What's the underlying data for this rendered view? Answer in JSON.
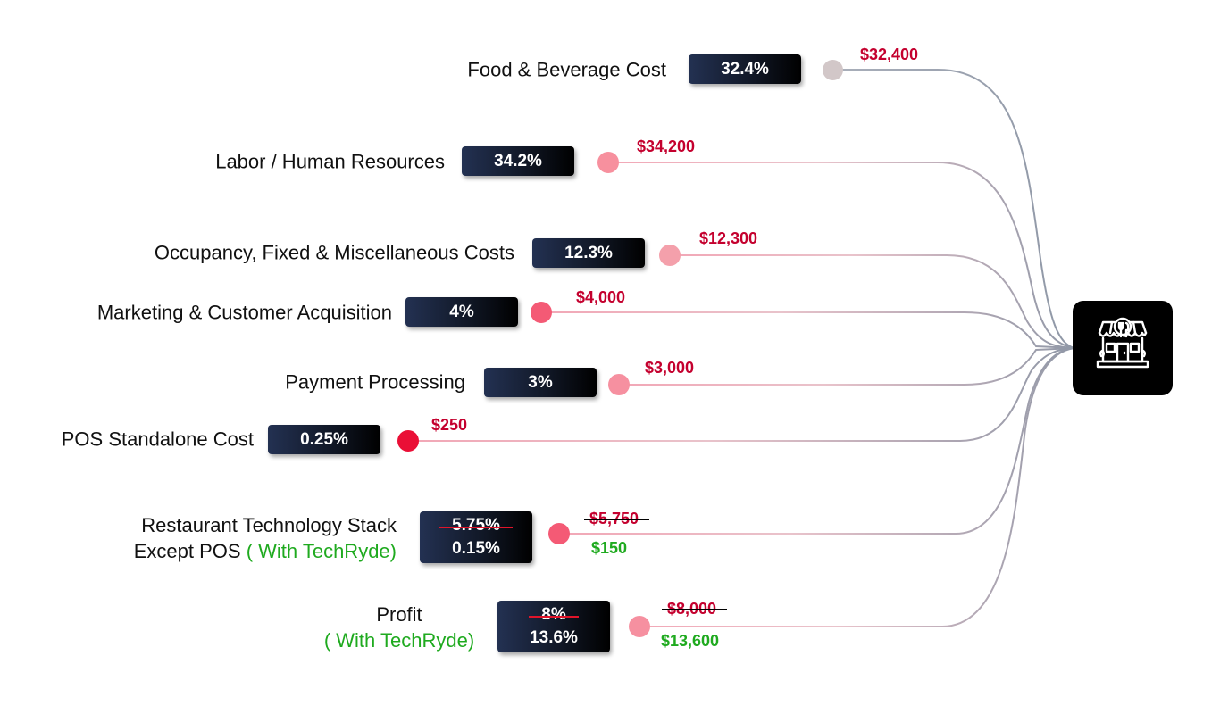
{
  "hub": {
    "icon": "restaurant-storefront-icon",
    "background": "#000000"
  },
  "colors": {
    "badge_bg": "#111827",
    "amount_red": "#c4002e",
    "amount_green": "#1faa1f",
    "line_gray": "#8f97a6",
    "line_pink": "#f2a7b6"
  },
  "rows": [
    {
      "id": "food",
      "label": "Food & Beverage Cost",
      "percent": "32.4%",
      "amount": "$32,400",
      "dot_color": "#d2c7c8"
    },
    {
      "id": "labor",
      "label": "Labor / Human Resources",
      "percent": "34.2%",
      "amount": "$34,200",
      "dot_color": "#f7909e"
    },
    {
      "id": "occupancy",
      "label": "Occupancy, Fixed & Miscellaneous Costs",
      "percent": "12.3%",
      "amount": "$12,300",
      "dot_color": "#f4a0ab"
    },
    {
      "id": "marketing",
      "label": "Marketing & Customer Acquisition",
      "percent": "4%",
      "amount": "$4,000",
      "dot_color": "#f45a75"
    },
    {
      "id": "payment",
      "label": "Payment Processing",
      "percent": "3%",
      "amount": "$3,000",
      "dot_color": "#f690a0"
    },
    {
      "id": "pos",
      "label": "POS Standalone Cost",
      "percent": "0.25%",
      "amount": "$250",
      "dot_color": "#ea0f36"
    },
    {
      "id": "techstack",
      "label_line1": "Restaurant Technology Stack",
      "label_line2": "Except POS",
      "label_note": "( With TechRyde)",
      "percent_old": "5.75%",
      "percent_new": "0.15%",
      "amount_old": "$5,750",
      "amount_new": "$150",
      "dot_color": "#f45a75"
    },
    {
      "id": "profit",
      "label_line1": "Profit",
      "label_note": "( With TechRyde)",
      "percent_old": "8%",
      "percent_new": "13.6%",
      "amount_old": "$8,000",
      "amount_new": "$13,600",
      "dot_color": "#f690a0"
    }
  ]
}
